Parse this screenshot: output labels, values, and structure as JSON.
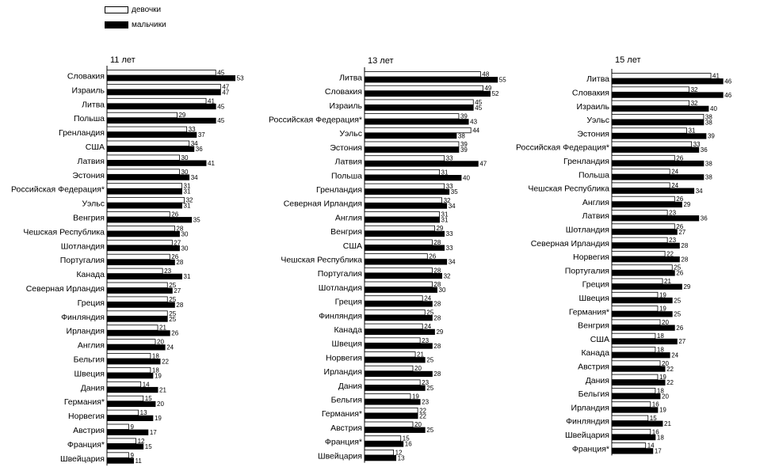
{
  "legend": {
    "girls_label": "девочки",
    "boys_label": "мальчики"
  },
  "colors": {
    "girls": "#ffffff",
    "boys": "#000000",
    "outline": "#000000"
  },
  "chart_data": [
    {
      "type": "bar",
      "orientation": "horizontal",
      "title": "11 лет",
      "categories": [
        "Словакия",
        "Израиль",
        "Литва",
        "Польша",
        "Гренландия",
        "США",
        "Латвия",
        "Эстония",
        "Российская Федерация*",
        "Уэльс",
        "Венгрия",
        "Чешская Республика",
        "Шотландия",
        "Португалия",
        "Канада",
        "Северная Ирландия",
        "Греция",
        "Финляндия",
        "Ирландия",
        "Англия",
        "Бельгия",
        "Швеция",
        "Дания",
        "Германия*",
        "Норвегия",
        "Австрия",
        "Франция*",
        "Швейцария"
      ],
      "series": [
        {
          "name": "девочки",
          "values": [
            45,
            47,
            41,
            29,
            33,
            34,
            30,
            30,
            31,
            32,
            26,
            28,
            27,
            26,
            23,
            25,
            25,
            25,
            21,
            20,
            18,
            18,
            14,
            15,
            13,
            9,
            12,
            9
          ]
        },
        {
          "name": "мальчики",
          "values": [
            53,
            47,
            45,
            45,
            37,
            36,
            41,
            34,
            31,
            31,
            35,
            30,
            30,
            28,
            31,
            27,
            28,
            25,
            26,
            24,
            22,
            19,
            21,
            20,
            19,
            17,
            15,
            11
          ]
        }
      ],
      "xlim": [
        0,
        60
      ]
    },
    {
      "type": "bar",
      "orientation": "horizontal",
      "title": "13 лет",
      "categories": [
        "Литва",
        "Словакия",
        "Израиль",
        "Российская Федерация*",
        "Уэльс",
        "Эстония",
        "Латвия",
        "Польша",
        "Гренландия",
        "Северная Ирландия",
        "Англия",
        "Венгрия",
        "США",
        "Чешская Республика",
        "Португалия",
        "Шотландия",
        "Греция",
        "Финляндия",
        "Канада",
        "Швеция",
        "Норвегия",
        "Ирландия",
        "Дания",
        "Бельгия",
        "Германия*",
        "Австрия",
        "Франция*",
        "Швейцария"
      ],
      "series": [
        {
          "name": "девочки",
          "values": [
            48,
            49,
            45,
            39,
            44,
            39,
            33,
            31,
            33,
            32,
            31,
            29,
            28,
            26,
            28,
            28,
            24,
            25,
            24,
            23,
            21,
            20,
            23,
            19,
            22,
            20,
            15,
            12
          ]
        },
        {
          "name": "мальчики",
          "values": [
            55,
            52,
            45,
            43,
            38,
            39,
            47,
            40,
            35,
            34,
            31,
            33,
            33,
            34,
            32,
            30,
            28,
            28,
            29,
            28,
            25,
            28,
            25,
            23,
            22,
            25,
            16,
            13
          ]
        }
      ],
      "xlim": [
        0,
        60
      ]
    },
    {
      "type": "bar",
      "orientation": "horizontal",
      "title": "15 лет",
      "categories": [
        "Литва",
        "Словакия",
        "Израиль",
        "Уэльс",
        "Эстония",
        "Российская Федерация*",
        "Гренландия",
        "Польша",
        "Чешская Республика",
        "Англия",
        "Латвия",
        "Шотландия",
        "Северная Ирландия",
        "Норвегия",
        "Португалия",
        "Греция",
        "Швеция",
        "Германия*",
        "Венгрия",
        "США",
        "Канада",
        "Австрия",
        "Дания",
        "Бельгия",
        "Ирландия",
        "Финляндия",
        "Швейцария",
        "Франция*"
      ],
      "series": [
        {
          "name": "девочки",
          "values": [
            41,
            32,
            32,
            38,
            31,
            33,
            26,
            24,
            24,
            26,
            23,
            26,
            23,
            22,
            25,
            21,
            19,
            19,
            20,
            18,
            18,
            20,
            19,
            18,
            16,
            15,
            16,
            14
          ]
        },
        {
          "name": "мальчики",
          "values": [
            46,
            46,
            40,
            38,
            39,
            36,
            38,
            38,
            34,
            29,
            36,
            27,
            28,
            28,
            26,
            29,
            25,
            25,
            26,
            27,
            24,
            22,
            22,
            20,
            19,
            21,
            18,
            17
          ]
        }
      ],
      "xlim": [
        0,
        60
      ]
    }
  ]
}
